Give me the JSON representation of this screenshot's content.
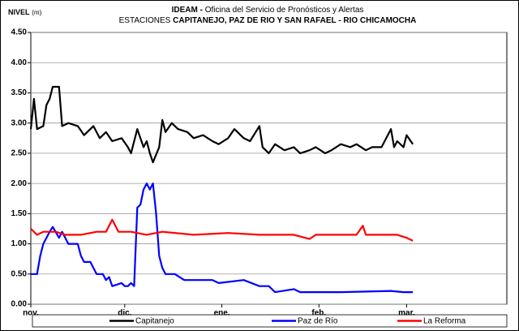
{
  "chart_data": {
    "type": "line",
    "title_bold": "IDEAM -",
    "title": "Oficina del Servicio de Pronósticos y Alertas",
    "subtitle_lead": "ESTACIONES",
    "subtitle": "CAPITANEJO, PAZ DE RIO Y SAN RAFAEL -  RIO CHICAMOCHA",
    "y_label": "NIVEL",
    "y_unit": "(m)",
    "xlim": [
      0,
      152
    ],
    "xticks": [
      {
        "value": 0,
        "label": "nov."
      },
      {
        "value": 30,
        "label": "dic."
      },
      {
        "value": 61,
        "label": "ene."
      },
      {
        "value": 92,
        "label": "feb."
      },
      {
        "value": 120,
        "label": "mar."
      }
    ],
    "ylim": [
      0,
      4.5
    ],
    "yticks": [
      {
        "value": 0,
        "label": "0.00"
      },
      {
        "value": 0.5,
        "label": "0.50"
      },
      {
        "value": 1,
        "label": "1.00"
      },
      {
        "value": 1.5,
        "label": "1.50"
      },
      {
        "value": 2,
        "label": "2.00"
      },
      {
        "value": 2.5,
        "label": "2.50"
      },
      {
        "value": 3,
        "label": "3.00"
      },
      {
        "value": 3.5,
        "label": "3.50"
      },
      {
        "value": 4,
        "label": "4.00"
      },
      {
        "value": 4.5,
        "label": "4.50"
      }
    ],
    "grid": true,
    "series": [
      {
        "name": "Capitanejo",
        "color": "#000000",
        "x": [
          0,
          1,
          2,
          4,
          5,
          6,
          7,
          9,
          10,
          12,
          15,
          17,
          20,
          22,
          24,
          26,
          29,
          31,
          32,
          34,
          36,
          37,
          38,
          39,
          41,
          42,
          43,
          45,
          47,
          50,
          52,
          55,
          58,
          60,
          63,
          65,
          68,
          70,
          73,
          74,
          76,
          78,
          81,
          84,
          86,
          89,
          91,
          94,
          96,
          99,
          102,
          104,
          107,
          109,
          112,
          115,
          116,
          117,
          119,
          120,
          122
        ],
        "values": [
          2.9,
          3.4,
          2.9,
          2.95,
          3.3,
          3.4,
          3.6,
          3.6,
          2.95,
          3.0,
          2.95,
          2.8,
          2.95,
          2.75,
          2.85,
          2.7,
          2.75,
          2.6,
          2.5,
          2.9,
          2.6,
          2.7,
          2.5,
          2.35,
          2.6,
          3.05,
          2.85,
          3.0,
          2.9,
          2.85,
          2.75,
          2.8,
          2.7,
          2.65,
          2.75,
          2.9,
          2.75,
          2.7,
          2.95,
          2.6,
          2.5,
          2.65,
          2.55,
          2.6,
          2.5,
          2.55,
          2.6,
          2.5,
          2.55,
          2.65,
          2.6,
          2.65,
          2.55,
          2.6,
          2.6,
          2.9,
          2.6,
          2.7,
          2.6,
          2.8,
          2.65
        ]
      },
      {
        "name": "Paz de Río",
        "color": "#0000ff",
        "x": [
          0,
          1,
          2,
          3,
          4,
          6,
          7,
          9,
          10,
          12,
          15,
          16,
          17,
          19,
          21,
          23,
          24,
          25,
          26,
          29,
          30,
          31,
          32,
          33,
          34,
          35,
          36,
          37,
          38,
          39,
          40,
          41,
          42,
          43,
          46,
          49,
          58,
          60,
          68,
          73,
          76,
          78,
          84,
          86,
          99,
          115,
          119,
          122
        ],
        "values": [
          0.5,
          0.5,
          0.5,
          0.8,
          1.0,
          1.2,
          1.28,
          1.1,
          1.2,
          1.0,
          1.0,
          0.8,
          0.7,
          0.7,
          0.5,
          0.5,
          0.4,
          0.45,
          0.3,
          0.35,
          0.3,
          0.3,
          0.35,
          0.3,
          1.6,
          1.65,
          1.9,
          2.0,
          1.9,
          2.0,
          1.5,
          0.8,
          0.6,
          0.5,
          0.5,
          0.4,
          0.4,
          0.35,
          0.4,
          0.3,
          0.3,
          0.2,
          0.25,
          0.2,
          0.2,
          0.22,
          0.2,
          0.2
        ]
      },
      {
        "name": "La Reforma",
        "color": "#ff0000",
        "x": [
          0,
          2,
          4,
          8,
          11,
          16,
          21,
          24,
          26,
          28,
          32,
          37,
          42,
          52,
          63,
          73,
          84,
          89,
          91,
          104,
          106,
          107,
          117,
          120,
          122
        ],
        "values": [
          1.25,
          1.15,
          1.2,
          1.2,
          1.15,
          1.15,
          1.2,
          1.2,
          1.4,
          1.2,
          1.2,
          1.15,
          1.2,
          1.15,
          1.18,
          1.15,
          1.15,
          1.08,
          1.15,
          1.15,
          1.3,
          1.15,
          1.15,
          1.1,
          1.05
        ]
      }
    ]
  }
}
